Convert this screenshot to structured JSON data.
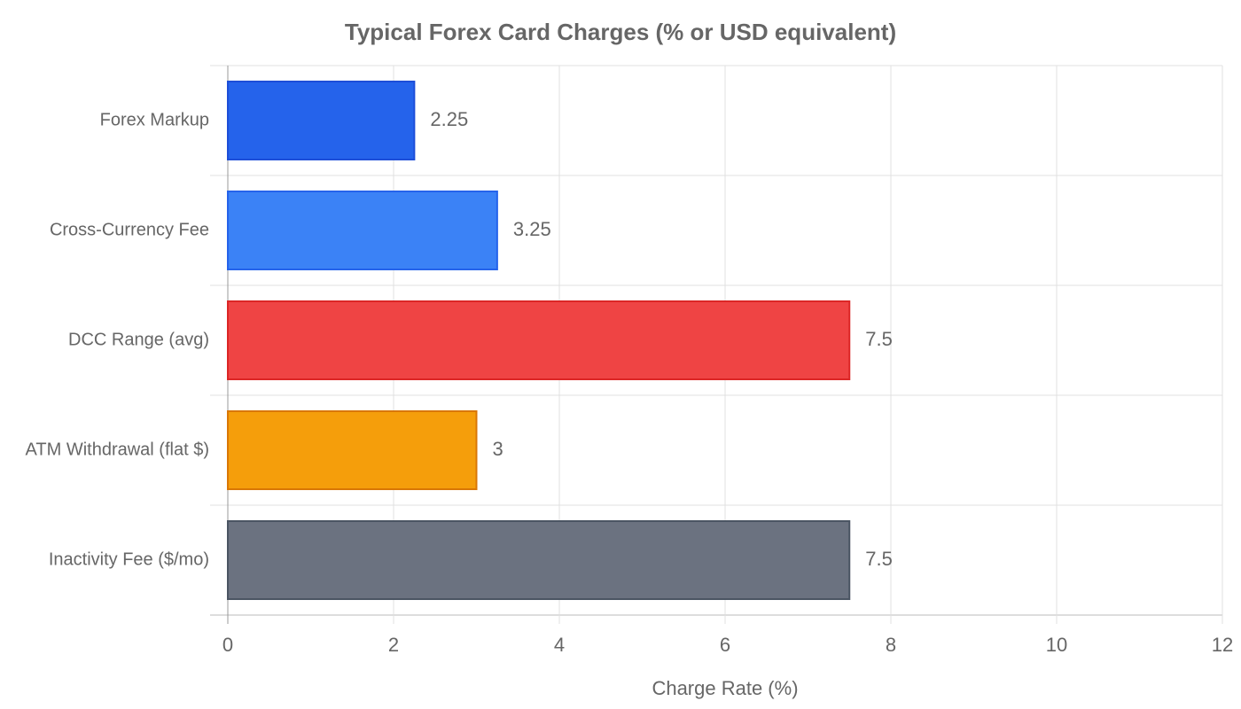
{
  "chart_data": {
    "type": "bar",
    "orientation": "horizontal",
    "title": "Typical Forex Card Charges (% or USD equivalent)",
    "x_label": "Charge Rate (%)",
    "categories": [
      "Forex Markup",
      "Cross-Currency Fee",
      "DCC Range (avg)",
      "ATM Withdrawal (flat $)",
      "Inactivity Fee ($/mo)"
    ],
    "values": [
      2.25,
      3.25,
      7.5,
      3,
      7.5
    ],
    "colors": [
      "#2563eb",
      "#3b82f6",
      "#ef4444",
      "#f59e0b",
      "#6b7280"
    ],
    "border_colors": [
      "#1d4ed8",
      "#2563eb",
      "#dc2626",
      "#d97706",
      "#4b5563"
    ],
    "xlim": [
      0,
      12
    ],
    "xticks": [
      0,
      2,
      4,
      6,
      8,
      10,
      12
    ],
    "grid": true
  }
}
